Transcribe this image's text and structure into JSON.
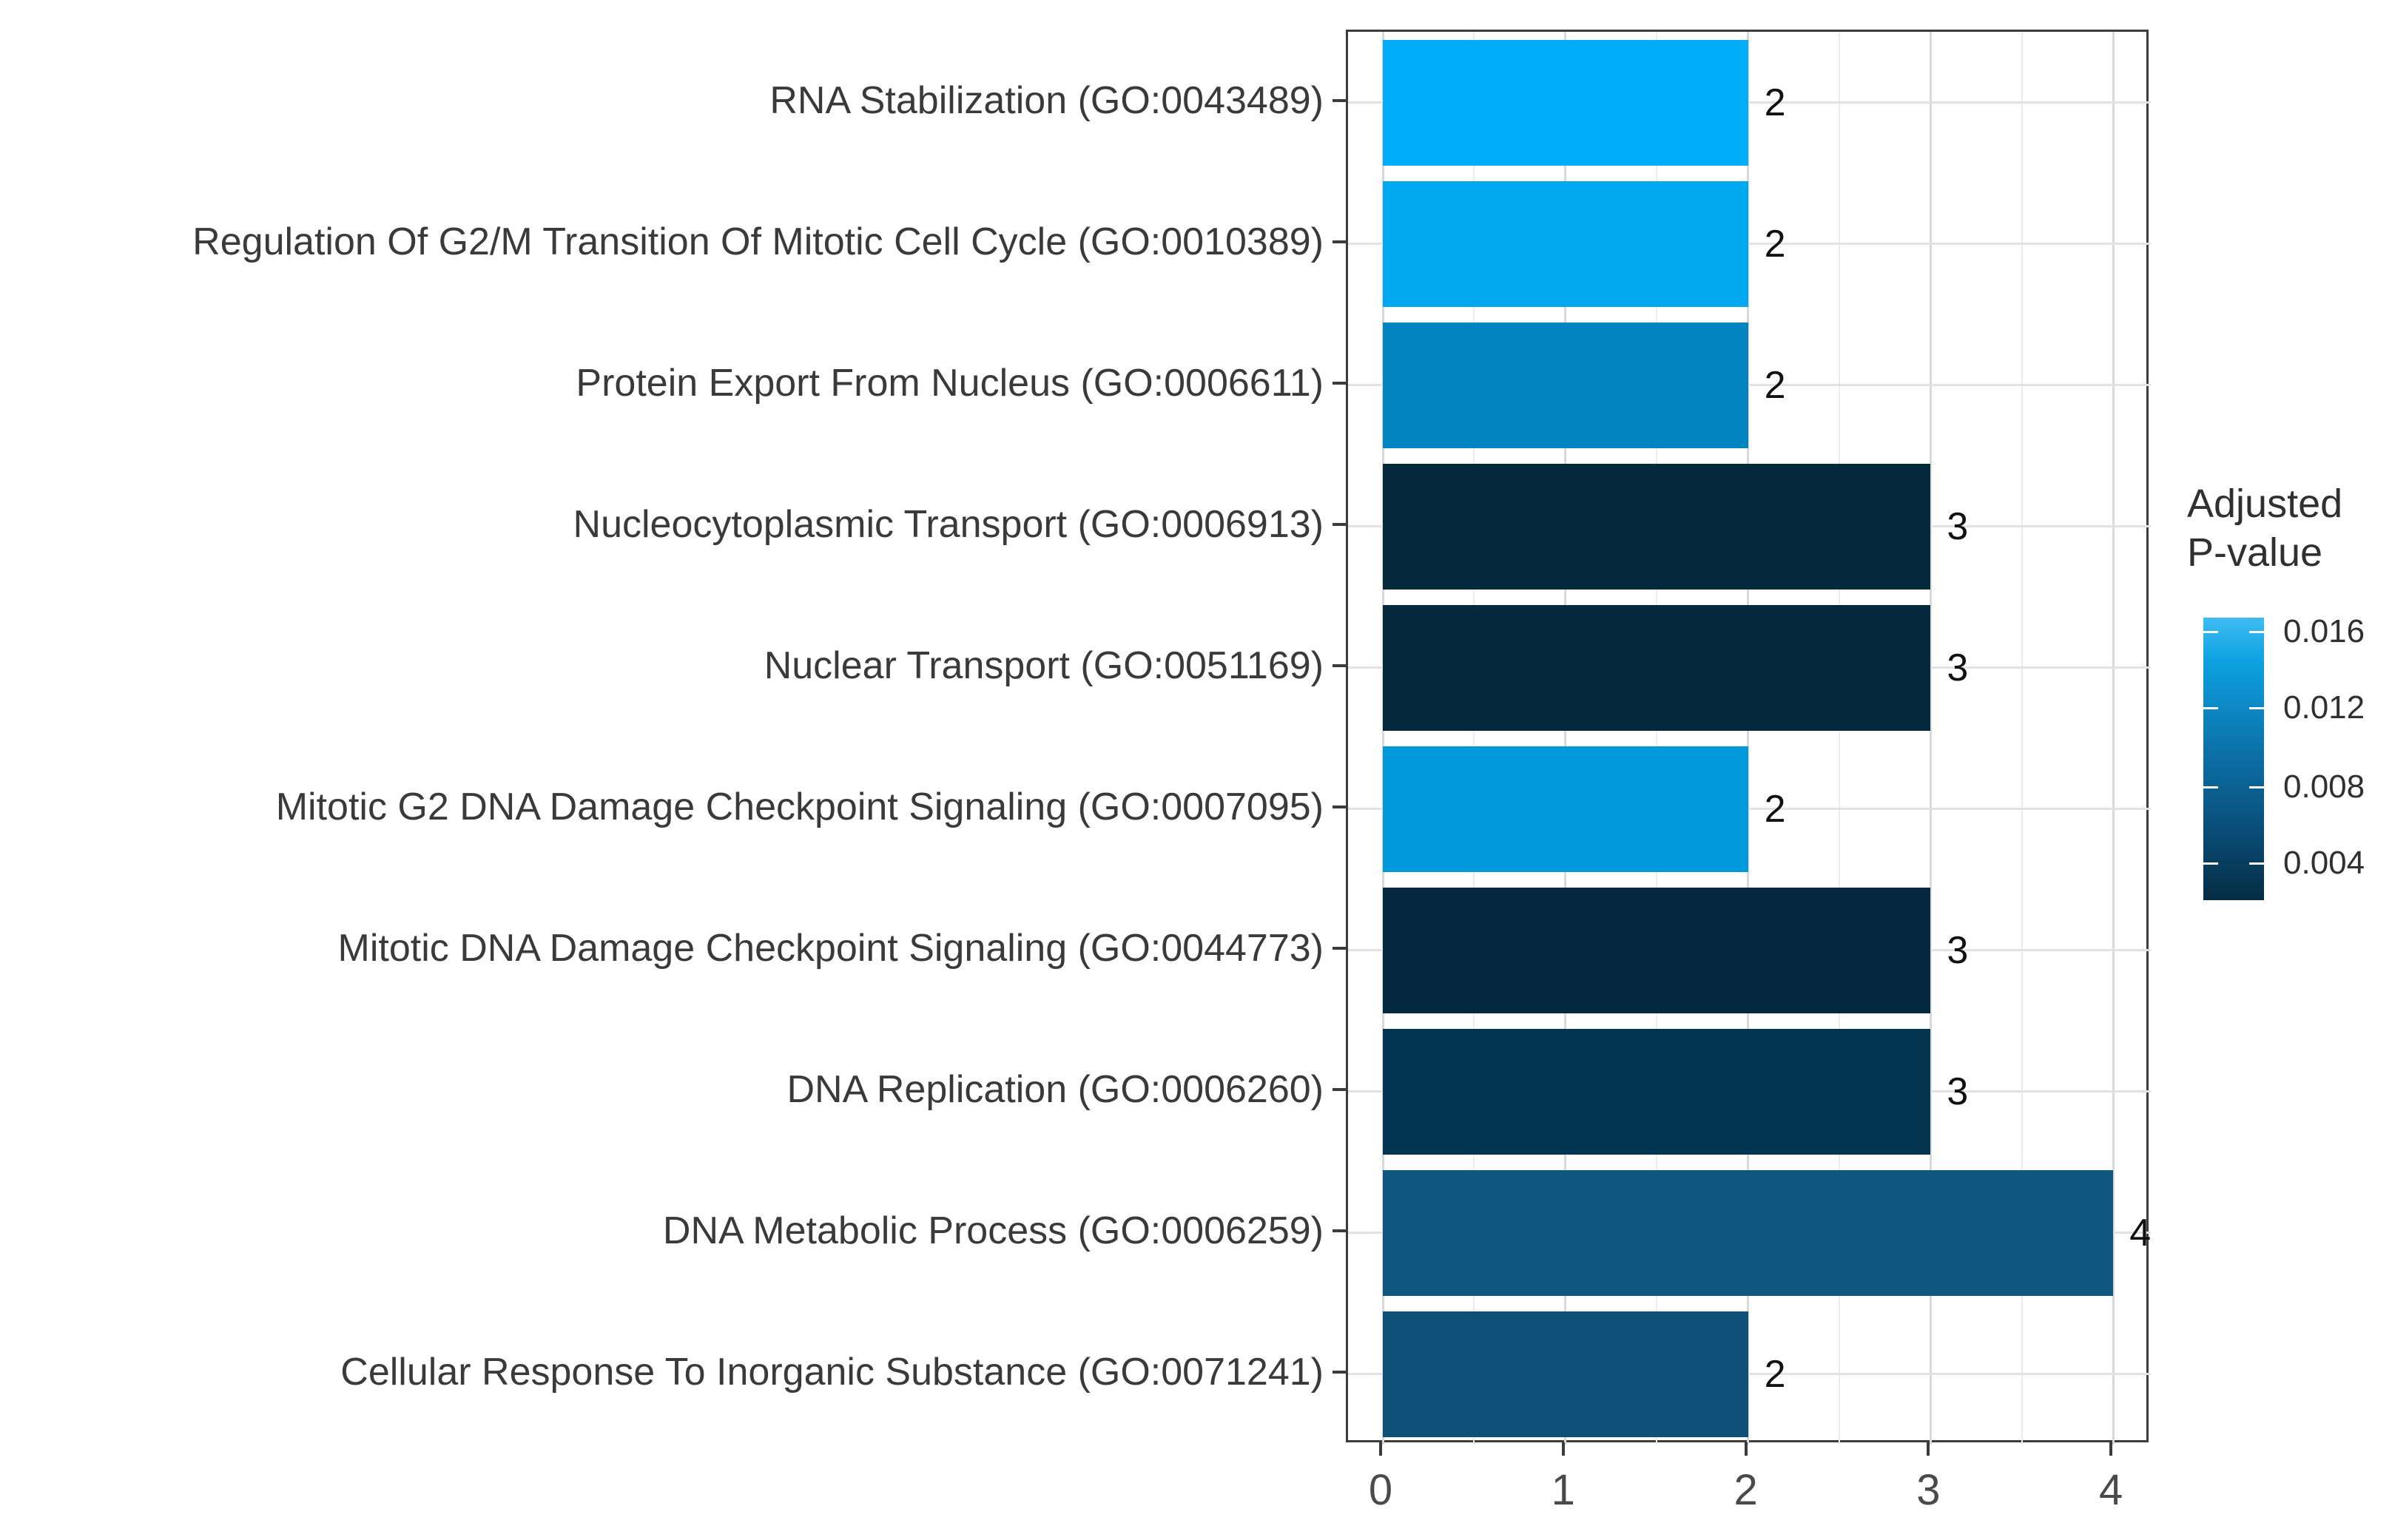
{
  "figure": {
    "background": "#FFFFFF",
    "panel_border_color": "#3C3C3C"
  },
  "chart_data": {
    "type": "bar",
    "orientation": "horizontal",
    "title": "",
    "xlabel": "",
    "ylabel": "",
    "xlim": [
      0,
      4
    ],
    "x_major_ticks": [
      0,
      1,
      2,
      3,
      4
    ],
    "x_tick_labels": [
      "0",
      "1",
      "2",
      "3",
      "4"
    ],
    "x_minor_ticks": [
      0.5,
      1.5,
      2.5,
      3.5
    ],
    "grid": {
      "vertical_major": true,
      "vertical_minor": true,
      "horizontal_major": true
    },
    "categories": [
      "RNA Stabilization (GO:0043489)",
      "Regulation Of G2/M Transition Of Mitotic Cell Cycle (GO:0010389)",
      "Protein Export From Nucleus (GO:0006611)",
      "Nucleocytoplasmic Transport (GO:0006913)",
      "Nuclear Transport (GO:0051169)",
      "Mitotic G2 DNA Damage Checkpoint Signaling (GO:0007095)",
      "Mitotic DNA Damage Checkpoint Signaling (GO:0044773)",
      "DNA Replication (GO:0006260)",
      "DNA Metabolic Process (GO:0006259)",
      "Cellular Response To Inorganic Substance (GO:0071241)"
    ],
    "values": [
      2,
      2,
      2,
      3,
      3,
      2,
      3,
      3,
      4,
      2
    ],
    "value_labels": [
      "2",
      "2",
      "2",
      "3",
      "3",
      "2",
      "3",
      "3",
      "4",
      "2"
    ],
    "bar_colors": [
      "#00ADF6",
      "#01A8F0",
      "#0284C0",
      "#04293F",
      "#04293F",
      "#0099DB",
      "#03283F",
      "#033450",
      "#0E567D",
      "#0E5078"
    ],
    "legend_position": "right",
    "colorbar": {
      "title_lines": [
        "Adjusted",
        "P-value"
      ],
      "tick_labels": [
        "0.016",
        "0.012",
        "0.008",
        "0.004"
      ],
      "tick_positions_pct": [
        5,
        32,
        60,
        87
      ],
      "gradient_stops": [
        {
          "color": "#3FBCF2",
          "pos": 0
        },
        {
          "color": "#0DA2E2",
          "pos": 15
        },
        {
          "color": "#0C74AC",
          "pos": 45
        },
        {
          "color": "#09517E",
          "pos": 72
        },
        {
          "color": "#052C43",
          "pos": 100
        }
      ]
    }
  }
}
